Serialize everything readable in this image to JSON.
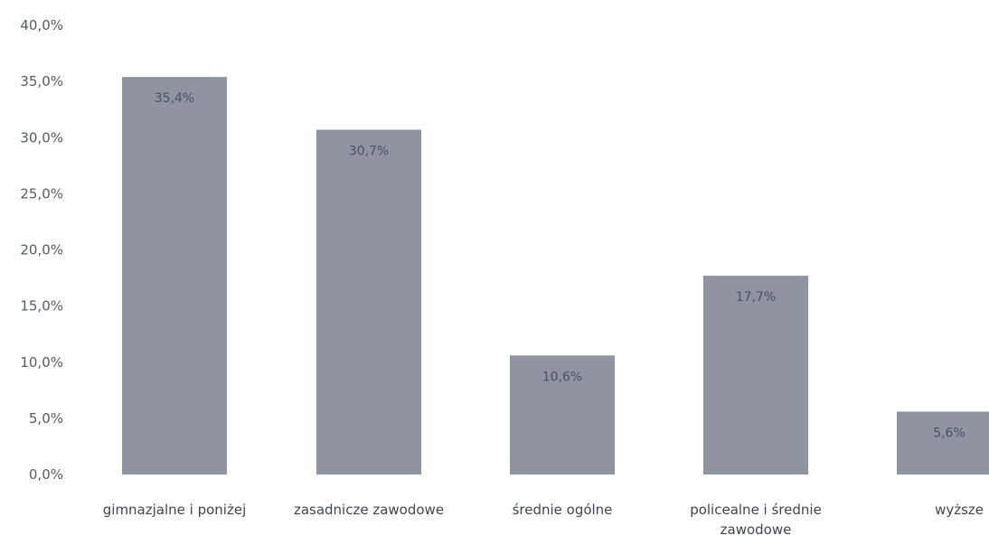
{
  "chart_data": {
    "type": "bar",
    "categories": [
      "gimnazjalne i poniżej",
      "zasadnicze zawodowe",
      "średnie ogólne",
      "policealne i średnie zawodowe",
      "wyższe"
    ],
    "values": [
      35.4,
      30.7,
      10.6,
      17.7,
      5.6
    ],
    "data_labels": [
      "35,4%",
      "30,7%",
      "10,6%",
      "17,7%",
      "5,6%"
    ],
    "ylim": [
      0,
      40
    ],
    "y_ticks": [
      0,
      5,
      10,
      15,
      20,
      25,
      30,
      35,
      40
    ],
    "y_tick_labels": [
      "0,0%",
      "5,0%",
      "10,0%",
      "15,0%",
      "20,0%",
      "25,0%",
      "30,0%",
      "35,0%",
      "40,0%"
    ],
    "grid": false,
    "legend": "none",
    "bar_color": "#8f94a0"
  }
}
